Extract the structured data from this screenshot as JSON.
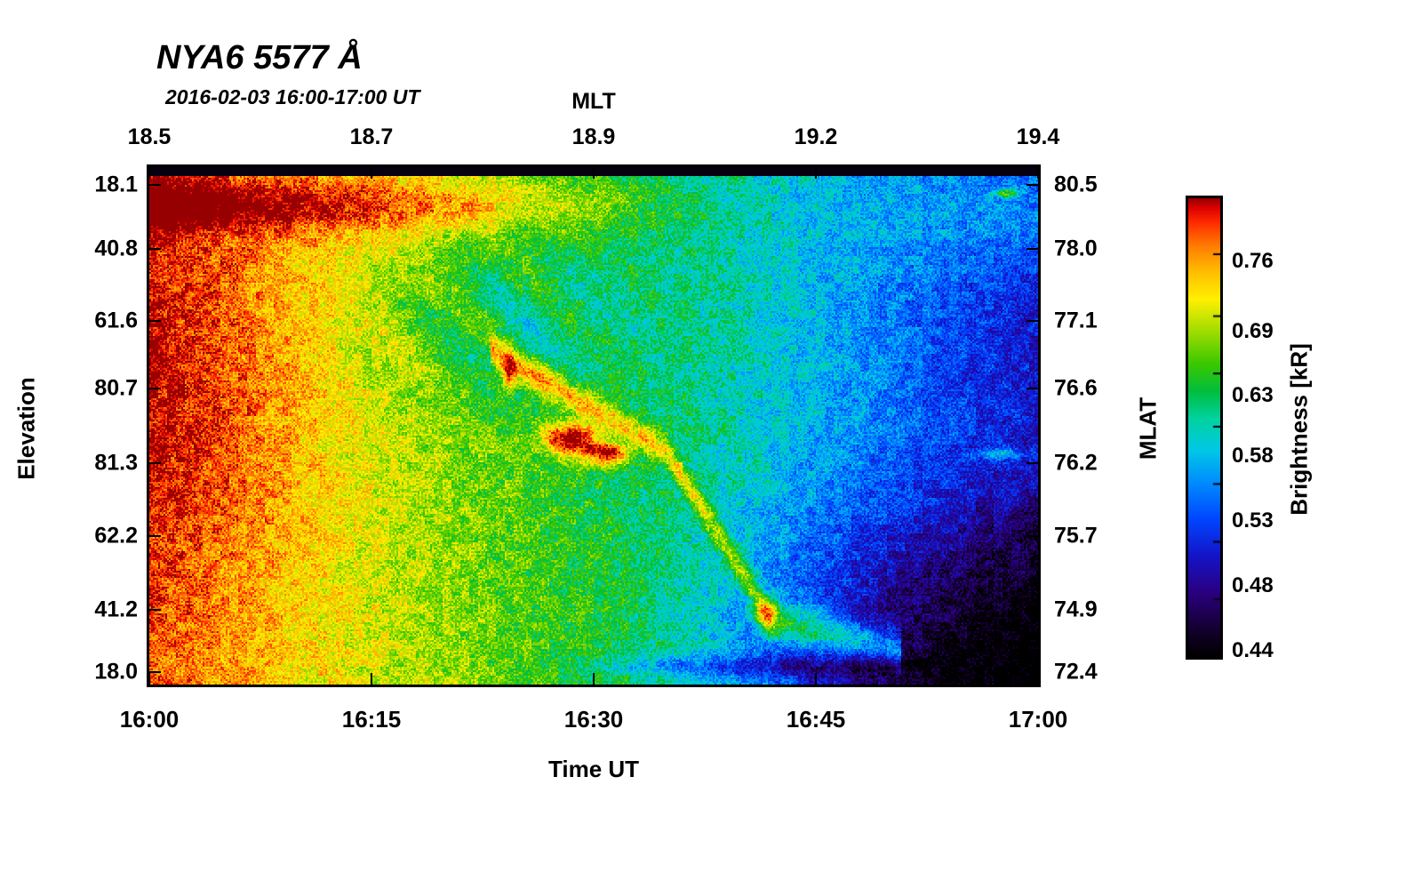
{
  "chart_data": {
    "type": "heatmap",
    "title": "NYA6 5577 Å",
    "subtitle": "2016-02-03 16:00-17:00 UT",
    "x_axis": {
      "label": "Time UT",
      "ticks": [
        "16:00",
        "16:15",
        "16:30",
        "16:45",
        "17:00"
      ],
      "positions": [
        0,
        0.25,
        0.5,
        0.75,
        1
      ]
    },
    "top_axis": {
      "label": "MLT",
      "ticks": [
        "18.5",
        "18.7",
        "18.9",
        "19.2",
        "19.4"
      ],
      "positions": [
        0,
        0.25,
        0.5,
        0.75,
        1
      ]
    },
    "y_axis": {
      "label": "Elevation",
      "ticks": [
        "18.1",
        "40.8",
        "61.6",
        "80.7",
        "81.3",
        "62.2",
        "41.2",
        "18.0"
      ],
      "positions": [
        0.034,
        0.158,
        0.297,
        0.427,
        0.572,
        0.713,
        0.855,
        0.976
      ]
    },
    "right_axis": {
      "label": "MLAT",
      "ticks": [
        "80.5",
        "78.0",
        "77.1",
        "76.6",
        "76.2",
        "75.7",
        "74.9",
        "72.4"
      ],
      "positions": [
        0.034,
        0.158,
        0.297,
        0.427,
        0.572,
        0.713,
        0.855,
        0.976
      ]
    },
    "colorbar": {
      "label": "Brightness [kR]",
      "ticks": [
        "0.76",
        "0.69",
        "0.63",
        "0.58",
        "0.53",
        "0.48",
        "0.44"
      ],
      "positions": [
        0.122,
        0.257,
        0.382,
        0.498,
        0.623,
        0.749,
        0.874
      ]
    },
    "colormap": [
      {
        "t": 0.0,
        "c": "#000000"
      },
      {
        "t": 0.06,
        "c": "#140030"
      },
      {
        "t": 0.14,
        "c": "#2a0080"
      },
      {
        "t": 0.22,
        "c": "#1414c8"
      },
      {
        "t": 0.3,
        "c": "#0046ff"
      },
      {
        "t": 0.38,
        "c": "#008cff"
      },
      {
        "t": 0.45,
        "c": "#00c8e6"
      },
      {
        "t": 0.52,
        "c": "#00d2a0"
      },
      {
        "t": 0.58,
        "c": "#00be3c"
      },
      {
        "t": 0.64,
        "c": "#3cc800"
      },
      {
        "t": 0.71,
        "c": "#a0dc00"
      },
      {
        "t": 0.78,
        "c": "#fff000"
      },
      {
        "t": 0.84,
        "c": "#ffbe00"
      },
      {
        "t": 0.9,
        "c": "#ff7800"
      },
      {
        "t": 0.95,
        "c": "#ff2800"
      },
      {
        "t": 0.98,
        "c": "#dc0000"
      },
      {
        "t": 1.0,
        "c": "#960000"
      }
    ],
    "features": {
      "background": {
        "left": 0.9,
        "right": 0.3
      },
      "top_black_strip": 0.016,
      "arc": {
        "path": [
          [
            0.385,
            0.355
          ],
          [
            0.58,
            0.545
          ],
          [
            0.7,
            0.875
          ],
          [
            0.845,
            0.935
          ]
        ],
        "amp": 0.26,
        "width": 0.028
      },
      "hotspots": [
        {
          "x": 0.475,
          "y": 0.525,
          "sx": 0.032,
          "sy": 0.03,
          "amp": 0.44
        },
        {
          "x": 0.515,
          "y": 0.555,
          "sx": 0.026,
          "sy": 0.022,
          "amp": 0.4
        },
        {
          "x": 0.695,
          "y": 0.865,
          "sx": 0.013,
          "sy": 0.032,
          "amp": 0.32
        },
        {
          "x": 0.405,
          "y": 0.405,
          "sx": 0.008,
          "sy": 0.03,
          "amp": 0.26
        },
        {
          "x": 0.963,
          "y": 0.05,
          "sx": 0.015,
          "sy": 0.009,
          "amp": 0.3
        },
        {
          "x": 0.958,
          "y": 0.555,
          "sx": 0.028,
          "sy": 0.011,
          "amp": 0.22
        }
      ],
      "noise_amp": 0.15,
      "coarse_noise_amp": 0.09,
      "summary": "Auroral 557.7 nm keogram: bright red/orange brightness near 16:00 fading through yellow-green toward blue after 16:45; a discrete arc drifts from high elevation ~16:24 down to low elevation ~16:47 with saturated red cores near 16:28-16:31 and 16:42; darkest (near-black) background at bottom-right."
    }
  }
}
